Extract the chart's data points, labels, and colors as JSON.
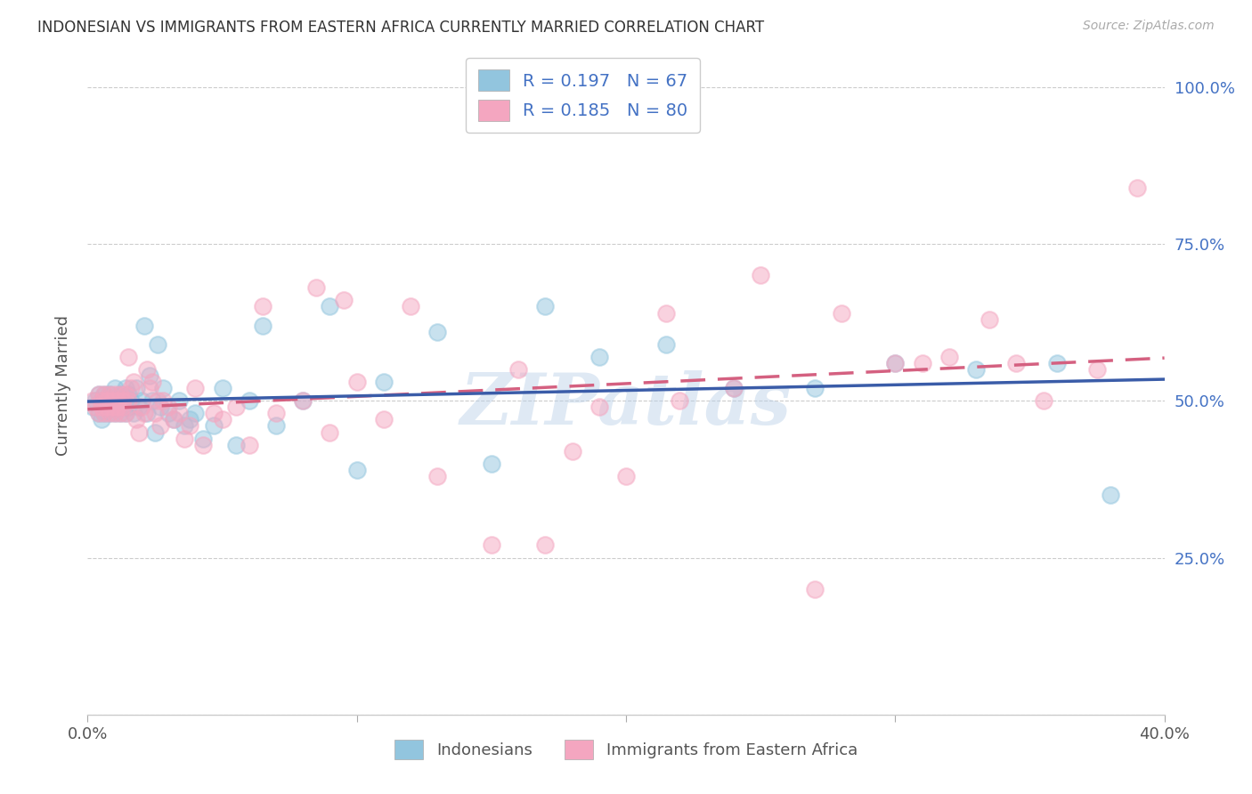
{
  "title": "INDONESIAN VS IMMIGRANTS FROM EASTERN AFRICA CURRENTLY MARRIED CORRELATION CHART",
  "source": "Source: ZipAtlas.com",
  "ylabel": "Currently Married",
  "xlim": [
    0.0,
    0.4
  ],
  "ylim": [
    0.0,
    1.05
  ],
  "yticks": [
    0.0,
    0.25,
    0.5,
    0.75,
    1.0
  ],
  "ytick_labels": [
    "",
    "25.0%",
    "50.0%",
    "75.0%",
    "100.0%"
  ],
  "xticks": [
    0.0,
    0.1,
    0.2,
    0.3,
    0.4
  ],
  "xtick_labels": [
    "0.0%",
    "",
    "",
    "",
    "40.0%"
  ],
  "watermark": "ZIPatlas",
  "color_indonesian": "#92c5de",
  "color_eastern_africa": "#f4a6c0",
  "color_line_blue": "#3a5ca8",
  "color_line_pink": "#d46080",
  "indonesian_x": [
    0.002,
    0.003,
    0.004,
    0.004,
    0.005,
    0.005,
    0.006,
    0.006,
    0.007,
    0.007,
    0.008,
    0.008,
    0.009,
    0.009,
    0.01,
    0.01,
    0.011,
    0.011,
    0.012,
    0.012,
    0.013,
    0.013,
    0.014,
    0.014,
    0.015,
    0.015,
    0.016,
    0.017,
    0.018,
    0.019,
    0.02,
    0.021,
    0.022,
    0.023,
    0.024,
    0.025,
    0.026,
    0.027,
    0.028,
    0.03,
    0.032,
    0.034,
    0.036,
    0.038,
    0.04,
    0.043,
    0.047,
    0.05,
    0.055,
    0.06,
    0.065,
    0.07,
    0.08,
    0.09,
    0.1,
    0.11,
    0.13,
    0.15,
    0.17,
    0.19,
    0.215,
    0.24,
    0.27,
    0.3,
    0.33,
    0.36,
    0.38
  ],
  "indonesian_y": [
    0.49,
    0.5,
    0.48,
    0.51,
    0.47,
    0.5,
    0.48,
    0.51,
    0.49,
    0.5,
    0.48,
    0.51,
    0.49,
    0.5,
    0.48,
    0.52,
    0.49,
    0.5,
    0.48,
    0.51,
    0.49,
    0.5,
    0.48,
    0.52,
    0.49,
    0.51,
    0.5,
    0.48,
    0.52,
    0.49,
    0.5,
    0.62,
    0.48,
    0.54,
    0.5,
    0.45,
    0.59,
    0.49,
    0.52,
    0.48,
    0.47,
    0.5,
    0.46,
    0.47,
    0.48,
    0.44,
    0.46,
    0.52,
    0.43,
    0.5,
    0.62,
    0.46,
    0.5,
    0.65,
    0.39,
    0.53,
    0.61,
    0.4,
    0.65,
    0.57,
    0.59,
    0.52,
    0.52,
    0.56,
    0.55,
    0.56,
    0.35
  ],
  "eastern_africa_x": [
    0.002,
    0.003,
    0.004,
    0.004,
    0.005,
    0.005,
    0.006,
    0.006,
    0.007,
    0.007,
    0.008,
    0.008,
    0.009,
    0.009,
    0.01,
    0.01,
    0.011,
    0.011,
    0.012,
    0.012,
    0.013,
    0.013,
    0.014,
    0.014,
    0.015,
    0.015,
    0.016,
    0.017,
    0.018,
    0.019,
    0.02,
    0.021,
    0.022,
    0.023,
    0.024,
    0.025,
    0.026,
    0.027,
    0.028,
    0.03,
    0.032,
    0.034,
    0.036,
    0.038,
    0.04,
    0.043,
    0.047,
    0.05,
    0.055,
    0.06,
    0.065,
    0.07,
    0.08,
    0.09,
    0.1,
    0.11,
    0.13,
    0.15,
    0.17,
    0.19,
    0.215,
    0.24,
    0.27,
    0.3,
    0.32,
    0.345,
    0.16,
    0.18,
    0.2,
    0.22,
    0.25,
    0.28,
    0.31,
    0.335,
    0.355,
    0.375,
    0.39,
    0.085,
    0.095,
    0.12
  ],
  "eastern_africa_y": [
    0.5,
    0.49,
    0.51,
    0.48,
    0.5,
    0.49,
    0.51,
    0.48,
    0.5,
    0.49,
    0.51,
    0.48,
    0.5,
    0.49,
    0.51,
    0.48,
    0.5,
    0.49,
    0.51,
    0.48,
    0.5,
    0.49,
    0.51,
    0.48,
    0.5,
    0.57,
    0.52,
    0.53,
    0.47,
    0.45,
    0.49,
    0.48,
    0.55,
    0.52,
    0.53,
    0.48,
    0.5,
    0.46,
    0.5,
    0.49,
    0.47,
    0.48,
    0.44,
    0.46,
    0.52,
    0.43,
    0.48,
    0.47,
    0.49,
    0.43,
    0.65,
    0.48,
    0.5,
    0.45,
    0.53,
    0.47,
    0.38,
    0.27,
    0.27,
    0.49,
    0.64,
    0.52,
    0.2,
    0.56,
    0.57,
    0.56,
    0.55,
    0.42,
    0.38,
    0.5,
    0.7,
    0.64,
    0.56,
    0.63,
    0.5,
    0.55,
    0.84,
    0.68,
    0.66,
    0.65
  ],
  "legend_line1": "R = 0.197   N = 67",
  "legend_line2": "R = 0.185   N = 80",
  "legend_label1": "Indonesians",
  "legend_label2": "Immigrants from Eastern Africa"
}
